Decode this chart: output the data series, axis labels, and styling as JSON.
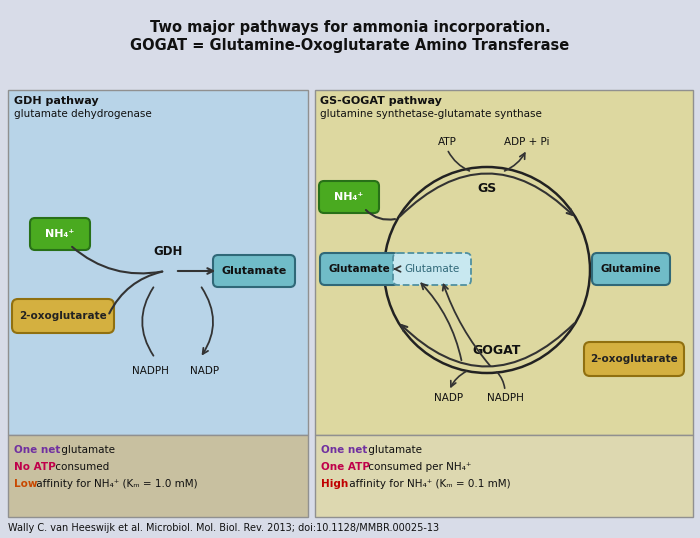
{
  "title_line1": "Two major pathways for ammonia incorporation.",
  "title_line2": "GOGAT = Glutamine-Oxoglutarate Amino Transferase",
  "left_panel_title": "GDH pathway",
  "left_panel_subtitle": "glutamate dehydrogenase",
  "right_panel_title": "GS-GOGAT pathway",
  "right_panel_subtitle": "glutamine synthetase-glutamate synthase",
  "bg_color": "#d8dce8",
  "left_bg": "#b8d4e8",
  "right_bg": "#ddd8a0",
  "left_sum_bg": "#c8c0a0",
  "right_sum_bg": "#ddd8b0",
  "footer": "Wally C. van Heeswijk et al. Microbiol. Mol. Biol. Rev. 2013; doi:10.1128/MMBR.00025-13",
  "green_color": "#4aaa20",
  "teal_color": "#70bcc8",
  "yellow_color": "#d4b040",
  "arrow_color": "#333333",
  "left_summary": [
    [
      "One net",
      " glutamate",
      "#7030a0"
    ],
    [
      "No ATP",
      " consumed",
      "#c0004a"
    ],
    [
      "Low",
      " affinity for NH₄⁺ (Kₘ = 1.0 mM)",
      "#c84800"
    ]
  ],
  "right_summary": [
    [
      "One net",
      " glutamate",
      "#7030a0"
    ],
    [
      "One ATP",
      " consumed per NH₄⁺",
      "#c0004a"
    ],
    [
      "High",
      " affinity for NH₄⁺ (Kₘ = 0.1 mM)",
      "#c00000"
    ]
  ]
}
